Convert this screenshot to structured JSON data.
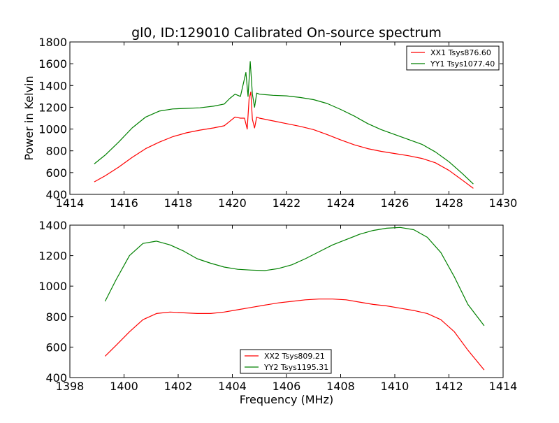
{
  "chart_data": [
    {
      "type": "line",
      "title": "gl0, ID:129010 Calibrated On-source spectrum",
      "xlabel": "",
      "ylabel": "Power in Kelvin",
      "xlim": [
        1414,
        1430
      ],
      "ylim": [
        400,
        1800
      ],
      "xticks": [
        1414,
        1416,
        1418,
        1420,
        1422,
        1424,
        1426,
        1428,
        1430
      ],
      "yticks": [
        400,
        600,
        800,
        1000,
        1200,
        1400,
        1600,
        1800
      ],
      "legend_position": "top-right",
      "series": [
        {
          "name": "XX1 Tsys876.60",
          "color": "#ff0000",
          "points": [
            [
              1414.9,
              515
            ],
            [
              1415.3,
              570
            ],
            [
              1415.8,
              650
            ],
            [
              1416.3,
              740
            ],
            [
              1416.8,
              820
            ],
            [
              1417.3,
              880
            ],
            [
              1417.8,
              930
            ],
            [
              1418.3,
              965
            ],
            [
              1418.8,
              990
            ],
            [
              1419.3,
              1010
            ],
            [
              1419.7,
              1030
            ],
            [
              1419.9,
              1070
            ],
            [
              1420.1,
              1110
            ],
            [
              1420.3,
              1100
            ],
            [
              1420.45,
              1100
            ],
            [
              1420.55,
              1000
            ],
            [
              1420.62,
              1280
            ],
            [
              1420.68,
              1340
            ],
            [
              1420.74,
              1090
            ],
            [
              1420.82,
              1010
            ],
            [
              1420.9,
              1110
            ],
            [
              1421.0,
              1100
            ],
            [
              1421.5,
              1075
            ],
            [
              1422.0,
              1050
            ],
            [
              1422.5,
              1025
            ],
            [
              1423.0,
              995
            ],
            [
              1423.5,
              950
            ],
            [
              1424.0,
              900
            ],
            [
              1424.5,
              855
            ],
            [
              1425.0,
              820
            ],
            [
              1425.5,
              795
            ],
            [
              1426.0,
              775
            ],
            [
              1426.5,
              755
            ],
            [
              1427.0,
              730
            ],
            [
              1427.5,
              690
            ],
            [
              1428.0,
              620
            ],
            [
              1428.5,
              530
            ],
            [
              1428.9,
              455
            ]
          ]
        },
        {
          "name": "YY1 Tsys1077.40",
          "color": "#008000",
          "points": [
            [
              1414.9,
              680
            ],
            [
              1415.3,
              760
            ],
            [
              1415.8,
              880
            ],
            [
              1416.3,
              1010
            ],
            [
              1416.8,
              1110
            ],
            [
              1417.3,
              1165
            ],
            [
              1417.8,
              1185
            ],
            [
              1418.3,
              1190
            ],
            [
              1418.8,
              1195
            ],
            [
              1419.3,
              1210
            ],
            [
              1419.7,
              1230
            ],
            [
              1419.9,
              1280
            ],
            [
              1420.1,
              1320
            ],
            [
              1420.3,
              1300
            ],
            [
              1420.5,
              1520
            ],
            [
              1420.58,
              1300
            ],
            [
              1420.66,
              1620
            ],
            [
              1420.74,
              1320
            ],
            [
              1420.82,
              1200
            ],
            [
              1420.9,
              1330
            ],
            [
              1421.0,
              1320
            ],
            [
              1421.5,
              1310
            ],
            [
              1422.0,
              1305
            ],
            [
              1422.5,
              1290
            ],
            [
              1423.0,
              1270
            ],
            [
              1423.5,
              1235
            ],
            [
              1424.0,
              1180
            ],
            [
              1424.5,
              1120
            ],
            [
              1425.0,
              1050
            ],
            [
              1425.5,
              995
            ],
            [
              1426.0,
              950
            ],
            [
              1426.5,
              905
            ],
            [
              1427.0,
              860
            ],
            [
              1427.5,
              790
            ],
            [
              1428.0,
              700
            ],
            [
              1428.5,
              590
            ],
            [
              1428.9,
              495
            ]
          ]
        }
      ]
    },
    {
      "type": "line",
      "title": "",
      "xlabel": "Frequency (MHz)",
      "ylabel": "",
      "xlim": [
        1398,
        1414
      ],
      "ylim": [
        400,
        1400
      ],
      "xticks": [
        1398,
        1400,
        1402,
        1404,
        1406,
        1408,
        1410,
        1412,
        1414
      ],
      "yticks": [
        400,
        600,
        800,
        1000,
        1200,
        1400
      ],
      "legend_position": "bottom-center",
      "series": [
        {
          "name": "XX2 Tsys809.21",
          "color": "#ff0000",
          "points": [
            [
              1399.3,
              540
            ],
            [
              1399.7,
              610
            ],
            [
              1400.2,
              700
            ],
            [
              1400.7,
              780
            ],
            [
              1401.2,
              820
            ],
            [
              1401.7,
              830
            ],
            [
              1402.2,
              825
            ],
            [
              1402.7,
              820
            ],
            [
              1403.2,
              820
            ],
            [
              1403.7,
              830
            ],
            [
              1404.2,
              845
            ],
            [
              1404.7,
              860
            ],
            [
              1405.2,
              875
            ],
            [
              1405.7,
              890
            ],
            [
              1406.2,
              900
            ],
            [
              1406.7,
              910
            ],
            [
              1407.2,
              915
            ],
            [
              1407.7,
              915
            ],
            [
              1408.2,
              910
            ],
            [
              1408.7,
              895
            ],
            [
              1409.2,
              880
            ],
            [
              1409.7,
              870
            ],
            [
              1410.2,
              855
            ],
            [
              1410.7,
              840
            ],
            [
              1411.2,
              820
            ],
            [
              1411.7,
              780
            ],
            [
              1412.2,
              700
            ],
            [
              1412.7,
              580
            ],
            [
              1413.3,
              450
            ]
          ]
        },
        {
          "name": "YY2 Tsys1195.31",
          "color": "#008000",
          "points": [
            [
              1399.3,
              900
            ],
            [
              1399.7,
              1040
            ],
            [
              1400.2,
              1200
            ],
            [
              1400.7,
              1280
            ],
            [
              1401.2,
              1295
            ],
            [
              1401.7,
              1270
            ],
            [
              1402.2,
              1230
            ],
            [
              1402.7,
              1180
            ],
            [
              1403.2,
              1150
            ],
            [
              1403.7,
              1125
            ],
            [
              1404.2,
              1110
            ],
            [
              1404.7,
              1105
            ],
            [
              1405.2,
              1102
            ],
            [
              1405.7,
              1115
            ],
            [
              1406.2,
              1140
            ],
            [
              1406.7,
              1180
            ],
            [
              1407.2,
              1225
            ],
            [
              1407.7,
              1270
            ],
            [
              1408.2,
              1305
            ],
            [
              1408.7,
              1340
            ],
            [
              1409.2,
              1365
            ],
            [
              1409.7,
              1380
            ],
            [
              1410.2,
              1385
            ],
            [
              1410.7,
              1370
            ],
            [
              1411.2,
              1320
            ],
            [
              1411.7,
              1220
            ],
            [
              1412.2,
              1060
            ],
            [
              1412.7,
              880
            ],
            [
              1413.3,
              740
            ]
          ]
        }
      ]
    }
  ]
}
